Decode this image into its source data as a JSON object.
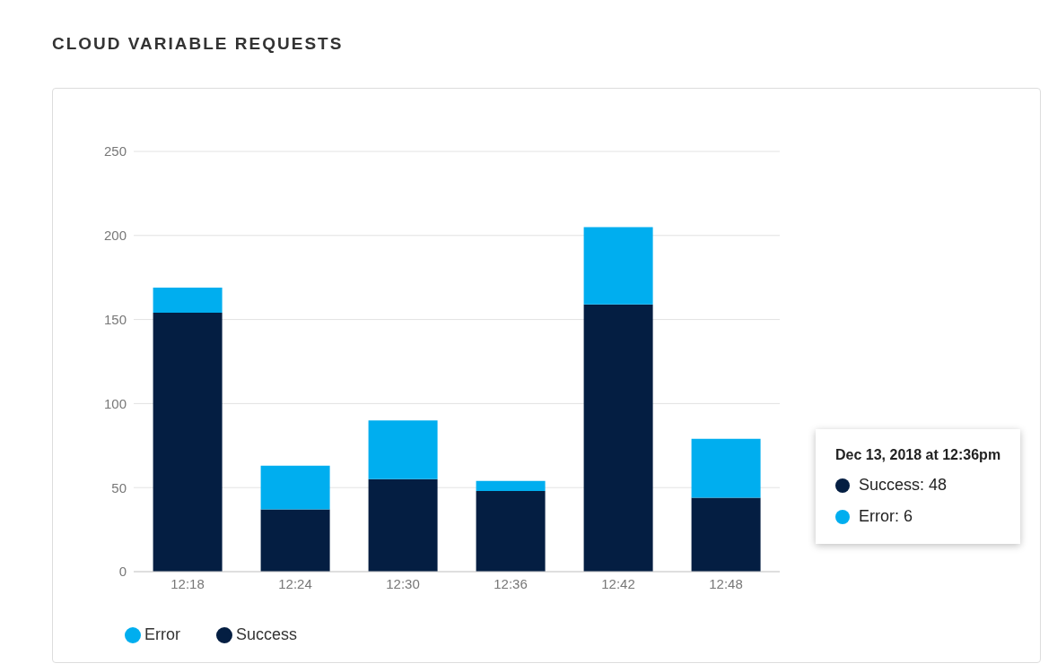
{
  "chart_data": {
    "type": "bar",
    "title": "CLOUD VARIABLE REQUESTS",
    "categories": [
      "12:18",
      "12:24",
      "12:30",
      "12:36",
      "12:42",
      "12:48"
    ],
    "series": [
      {
        "name": "Success",
        "color": "#041e42",
        "values": [
          154,
          37,
          55,
          48,
          159,
          44
        ]
      },
      {
        "name": "Error",
        "color": "#00aeef",
        "values": [
          15,
          26,
          35,
          6,
          46,
          35
        ]
      }
    ],
    "stacked": true,
    "ylim": [
      0,
      250
    ],
    "yticks": [
      0,
      50,
      100,
      150,
      200,
      250
    ],
    "grid": "y",
    "legend": "bottom left",
    "annotations": [
      "Dec 13, 2018 at 12:36pm",
      "Success: 48",
      "Error: 6"
    ]
  }
}
